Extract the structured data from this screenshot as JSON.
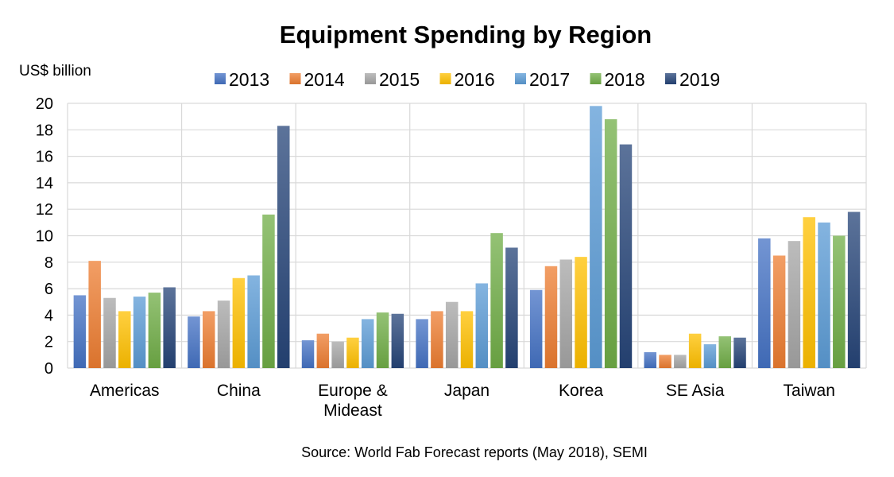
{
  "chart_data": {
    "type": "bar",
    "title": "Equipment Spending by Region",
    "unit_label": "US$ billion",
    "source": "Source: World Fab Forecast reports (May 2018), SEMI",
    "xlabel": "",
    "ylabel": "",
    "ylim": [
      0,
      20
    ],
    "yticks": [
      "0",
      "2",
      "4",
      "6",
      "8",
      "10",
      "12",
      "14",
      "16",
      "18",
      "20"
    ],
    "grid": true,
    "legend_position": "top",
    "categories": [
      [
        "Americas"
      ],
      [
        "China"
      ],
      [
        "Europe &",
        "Mideast"
      ],
      [
        "Japan"
      ],
      [
        "Korea"
      ],
      [
        "SE Asia"
      ],
      [
        "Taiwan"
      ]
    ],
    "series": [
      {
        "name": "2013",
        "color": "#4472C4",
        "values": [
          5.5,
          3.9,
          2.1,
          3.7,
          5.9,
          1.2,
          9.8
        ]
      },
      {
        "name": "2014",
        "color": "#ED7D31",
        "values": [
          8.1,
          4.3,
          2.6,
          4.3,
          7.7,
          1.0,
          8.5
        ]
      },
      {
        "name": "2015",
        "color": "#A5A5A5",
        "values": [
          5.3,
          5.1,
          2.0,
          5.0,
          8.2,
          1.0,
          9.6
        ]
      },
      {
        "name": "2016",
        "color": "#FFC000",
        "values": [
          4.3,
          6.8,
          2.3,
          4.3,
          8.4,
          2.6,
          11.4
        ]
      },
      {
        "name": "2017",
        "color": "#5B9BD5",
        "values": [
          5.4,
          7.0,
          3.7,
          6.4,
          19.8,
          1.8,
          11.0
        ]
      },
      {
        "name": "2018",
        "color": "#70AD47",
        "values": [
          5.7,
          11.6,
          4.2,
          10.2,
          18.8,
          2.4,
          10.0
        ]
      },
      {
        "name": "2019",
        "color": "#264478",
        "values": [
          6.1,
          18.3,
          4.1,
          9.1,
          16.9,
          2.3,
          11.8
        ]
      }
    ]
  }
}
